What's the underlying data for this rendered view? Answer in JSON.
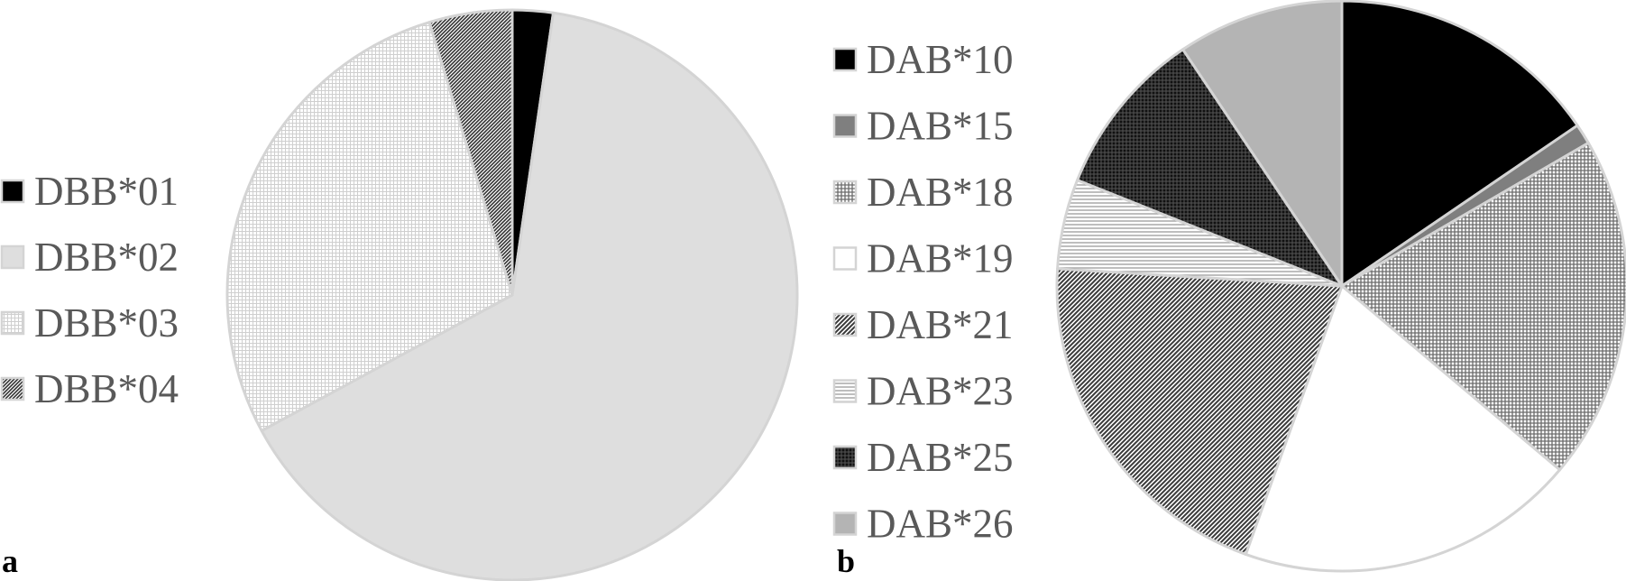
{
  "chart_data": [
    {
      "type": "pie",
      "panel_label": "a",
      "legend_position": "left",
      "start_angle_deg": 0,
      "direction": "clockwise",
      "slices": [
        {
          "label": "DBB*01",
          "value": 2.3,
          "fill": "#000000",
          "pattern": "solid"
        },
        {
          "label": "DBB*02",
          "value": 64.8,
          "fill": "#dedede",
          "pattern": "solid"
        },
        {
          "label": "DBB*03",
          "value": 28.2,
          "fill": "#ffffff",
          "pattern": "fine-grid"
        },
        {
          "label": "DBB*04",
          "value": 4.7,
          "fill": "#ffffff",
          "pattern": "diagonal-dense"
        }
      ]
    },
    {
      "type": "pie",
      "panel_label": "b",
      "legend_position": "left",
      "start_angle_deg": 0,
      "direction": "clockwise",
      "slices": [
        {
          "label": "DAB*10",
          "value": 16.1,
          "fill": "#000000",
          "pattern": "solid"
        },
        {
          "label": "DAB*15",
          "value": 1.2,
          "fill": "#7f7f7f",
          "pattern": "solid"
        },
        {
          "label": "DAB*18",
          "value": 20.3,
          "fill": "#ffffff",
          "pattern": "grid"
        },
        {
          "label": "DAB*19",
          "value": 20.1,
          "fill": "#ffffff",
          "pattern": "solid"
        },
        {
          "label": "DAB*21",
          "value": 21.3,
          "fill": "#ffffff",
          "pattern": "diagonal"
        },
        {
          "label": "DAB*23",
          "value": 5.3,
          "fill": "#ffffff",
          "pattern": "horizontal"
        },
        {
          "label": "DAB*25",
          "value": 9.9,
          "fill": "#1a1a1a",
          "pattern": "dark-grid"
        },
        {
          "label": "DAB*26",
          "value": 9.8,
          "fill": "#b4b4b4",
          "pattern": "solid"
        }
      ]
    }
  ]
}
